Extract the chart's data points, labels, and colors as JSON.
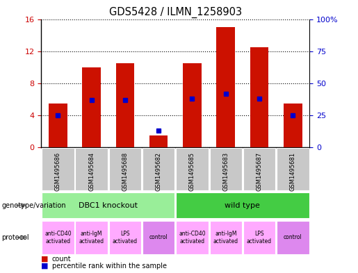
{
  "title": "GDS5428 / ILMN_1258903",
  "samples": [
    "GSM1495686",
    "GSM1495684",
    "GSM1495688",
    "GSM1495682",
    "GSM1495685",
    "GSM1495683",
    "GSM1495687",
    "GSM1495681"
  ],
  "counts": [
    5.5,
    10.0,
    10.5,
    1.5,
    10.5,
    15.0,
    12.5,
    5.5
  ],
  "percentiles": [
    25,
    37,
    37,
    13,
    38,
    42,
    38,
    25
  ],
  "ylim_left": [
    0,
    16
  ],
  "ylim_right": [
    0,
    100
  ],
  "yticks_left": [
    0,
    4,
    8,
    12,
    16
  ],
  "yticks_right": [
    0,
    25,
    50,
    75,
    100
  ],
  "yticklabels_right": [
    "0",
    "25",
    "50",
    "75",
    "100%"
  ],
  "bar_color": "#cc1100",
  "marker_color": "#0000cc",
  "genotype_groups": [
    {
      "label": "DBC1 knockout",
      "span": [
        0,
        4
      ],
      "color": "#99ee99"
    },
    {
      "label": "wild type",
      "span": [
        4,
        8
      ],
      "color": "#44cc44"
    }
  ],
  "protocols": [
    {
      "label": "anti-CD40\nactivated",
      "span": [
        0,
        1
      ],
      "color": "#ffaaff"
    },
    {
      "label": "anti-IgM\nactivated",
      "span": [
        1,
        2
      ],
      "color": "#ffaaff"
    },
    {
      "label": "LPS\nactivated",
      "span": [
        2,
        3
      ],
      "color": "#ffaaff"
    },
    {
      "label": "control",
      "span": [
        3,
        4
      ],
      "color": "#dd88ee"
    },
    {
      "label": "anti-CD40\nactivated",
      "span": [
        4,
        5
      ],
      "color": "#ffaaff"
    },
    {
      "label": "anti-IgM\nactivated",
      "span": [
        5,
        6
      ],
      "color": "#ffaaff"
    },
    {
      "label": "LPS\nactivated",
      "span": [
        6,
        7
      ],
      "color": "#ffaaff"
    },
    {
      "label": "control",
      "span": [
        7,
        8
      ],
      "color": "#dd88ee"
    }
  ],
  "sample_bg_color": "#c8c8c8",
  "legend_count_color": "#cc1100",
  "legend_marker_color": "#0000cc",
  "background_color": "#ffffff"
}
